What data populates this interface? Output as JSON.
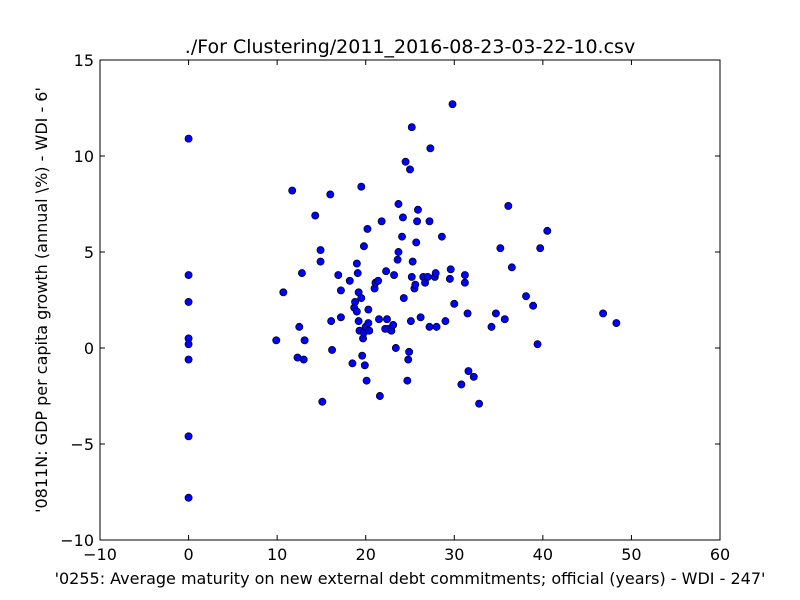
{
  "chart_data": {
    "type": "scatter",
    "title": "./For Clustering/2011_2016-08-23-03-22-10.csv",
    "xlabel": "'0255: Average maturity on new external debt commitments; official  (years) - WDI - 247'",
    "ylabel": "'0811N: GDP per capita growth  (annual \\%) - WDI - 6'",
    "xlim": [
      -10,
      60
    ],
    "ylim": [
      -10,
      15
    ],
    "xticks": [
      -10,
      0,
      10,
      20,
      30,
      40,
      50,
      60
    ],
    "yticks": [
      -10,
      -5,
      0,
      5,
      10,
      15
    ],
    "xtick_labels": [
      "−10",
      "0",
      "10",
      "20",
      "30",
      "40",
      "50",
      "60"
    ],
    "ytick_labels": [
      "−10",
      "−5",
      "0",
      "5",
      "10",
      "15"
    ],
    "grid": false,
    "marker_color": "#0000ff",
    "series": [
      {
        "points": [
          [
            0,
            10.9
          ],
          [
            0,
            3.8
          ],
          [
            0,
            2.4
          ],
          [
            0,
            0.5
          ],
          [
            0,
            0.2
          ],
          [
            0,
            -0.6
          ],
          [
            0,
            -4.6
          ],
          [
            0,
            -7.8
          ],
          [
            9.9,
            0.4
          ],
          [
            10.7,
            2.9
          ],
          [
            11.7,
            8.2
          ],
          [
            12.3,
            -0.5
          ],
          [
            12.5,
            1.1
          ],
          [
            12.8,
            3.9
          ],
          [
            13.0,
            -0.6
          ],
          [
            13.1,
            0.4
          ],
          [
            14.3,
            6.9
          ],
          [
            14.9,
            4.5
          ],
          [
            14.9,
            5.1
          ],
          [
            15.1,
            -2.8
          ],
          [
            16.0,
            8.0
          ],
          [
            16.1,
            1.4
          ],
          [
            16.2,
            -0.1
          ],
          [
            16.9,
            3.8
          ],
          [
            17.2,
            3.0
          ],
          [
            17.2,
            1.6
          ],
          [
            18.2,
            3.5
          ],
          [
            18.5,
            -0.8
          ],
          [
            18.7,
            2.1
          ],
          [
            18.8,
            2.4
          ],
          [
            19.0,
            4.4
          ],
          [
            19.0,
            1.9
          ],
          [
            19.1,
            3.9
          ],
          [
            19.2,
            1.4
          ],
          [
            19.2,
            2.9
          ],
          [
            19.3,
            0.9
          ],
          [
            19.5,
            8.4
          ],
          [
            19.5,
            2.6
          ],
          [
            19.6,
            -0.4
          ],
          [
            19.7,
            0.5
          ],
          [
            19.8,
            5.3
          ],
          [
            19.8,
            0.8
          ],
          [
            19.9,
            -0.9
          ],
          [
            20.0,
            1.1
          ],
          [
            20.1,
            -1.7
          ],
          [
            20.2,
            6.2
          ],
          [
            20.3,
            1.3
          ],
          [
            20.3,
            2.0
          ],
          [
            20.4,
            0.9
          ],
          [
            21.0,
            3.1
          ],
          [
            21.1,
            3.4
          ],
          [
            21.4,
            3.5
          ],
          [
            21.5,
            1.5
          ],
          [
            21.6,
            -2.5
          ],
          [
            21.8,
            6.6
          ],
          [
            22.2,
            1.0
          ],
          [
            22.3,
            4.0
          ],
          [
            22.4,
            1.5
          ],
          [
            22.6,
            1.0
          ],
          [
            22.9,
            0.9
          ],
          [
            23.1,
            1.2
          ],
          [
            23.2,
            3.8
          ],
          [
            23.4,
            0.0
          ],
          [
            23.6,
            4.6
          ],
          [
            23.7,
            7.5
          ],
          [
            23.7,
            5.0
          ],
          [
            24.1,
            5.8
          ],
          [
            24.2,
            6.8
          ],
          [
            24.3,
            2.6
          ],
          [
            24.5,
            9.7
          ],
          [
            24.7,
            -1.7
          ],
          [
            24.8,
            -0.6
          ],
          [
            24.9,
            -0.2
          ],
          [
            25.0,
            9.3
          ],
          [
            25.1,
            1.4
          ],
          [
            25.2,
            3.7
          ],
          [
            25.2,
            11.5
          ],
          [
            25.3,
            4.5
          ],
          [
            25.5,
            3.1
          ],
          [
            25.6,
            3.3
          ],
          [
            25.7,
            5.5
          ],
          [
            25.8,
            6.6
          ],
          [
            25.9,
            7.2
          ],
          [
            26.2,
            1.6
          ],
          [
            26.5,
            3.7
          ],
          [
            26.7,
            3.4
          ],
          [
            27.0,
            3.7
          ],
          [
            27.2,
            1.1
          ],
          [
            27.2,
            6.6
          ],
          [
            27.3,
            10.4
          ],
          [
            27.8,
            3.7
          ],
          [
            27.9,
            3.9
          ],
          [
            28.0,
            1.1
          ],
          [
            28.6,
            5.8
          ],
          [
            29.0,
            1.4
          ],
          [
            29.5,
            3.6
          ],
          [
            29.6,
            4.1
          ],
          [
            29.8,
            12.7
          ],
          [
            30.0,
            2.3
          ],
          [
            30.8,
            -1.9
          ],
          [
            31.2,
            3.8
          ],
          [
            31.2,
            3.4
          ],
          [
            31.5,
            1.8
          ],
          [
            31.6,
            -1.2
          ],
          [
            32.2,
            -1.5
          ],
          [
            32.8,
            -2.9
          ],
          [
            34.2,
            1.1
          ],
          [
            34.7,
            1.8
          ],
          [
            35.2,
            5.2
          ],
          [
            35.7,
            1.5
          ],
          [
            36.1,
            7.4
          ],
          [
            36.5,
            4.2
          ],
          [
            38.1,
            2.7
          ],
          [
            38.9,
            2.2
          ],
          [
            39.4,
            0.2
          ],
          [
            39.7,
            5.2
          ],
          [
            40.5,
            6.1
          ],
          [
            46.8,
            1.8
          ],
          [
            48.3,
            1.3
          ]
        ]
      }
    ]
  }
}
